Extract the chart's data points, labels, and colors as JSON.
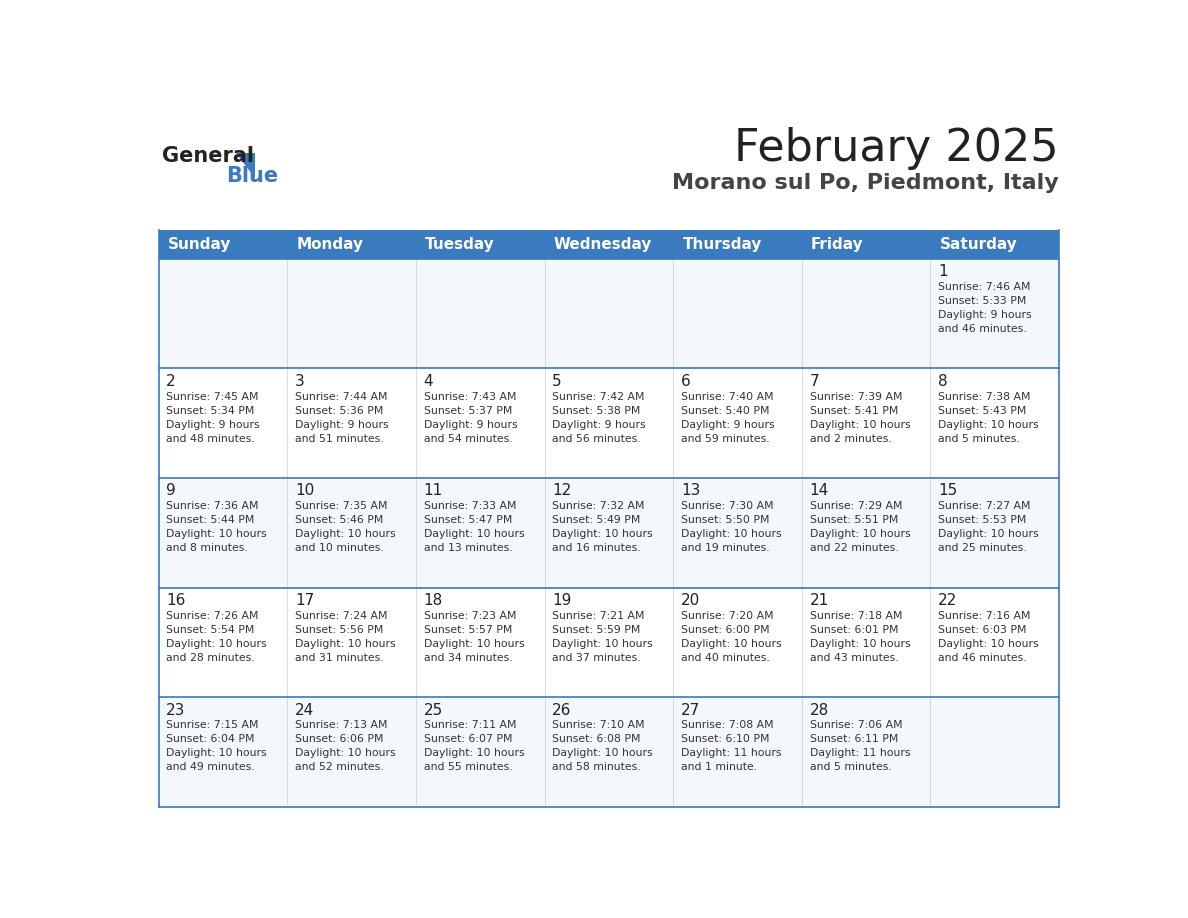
{
  "title": "February 2025",
  "subtitle": "Morano sul Po, Piedmont, Italy",
  "header_color": "#3a7abf",
  "header_text_color": "#ffffff",
  "border_color": "#3a7abf",
  "day_names": [
    "Sunday",
    "Monday",
    "Tuesday",
    "Wednesday",
    "Thursday",
    "Friday",
    "Saturday"
  ],
  "days": [
    {
      "day": 1,
      "col": 6,
      "row": 0,
      "sunrise": "7:46 AM",
      "sunset": "5:33 PM",
      "daylight": "9 hours and 46 minutes."
    },
    {
      "day": 2,
      "col": 0,
      "row": 1,
      "sunrise": "7:45 AM",
      "sunset": "5:34 PM",
      "daylight": "9 hours and 48 minutes."
    },
    {
      "day": 3,
      "col": 1,
      "row": 1,
      "sunrise": "7:44 AM",
      "sunset": "5:36 PM",
      "daylight": "9 hours and 51 minutes."
    },
    {
      "day": 4,
      "col": 2,
      "row": 1,
      "sunrise": "7:43 AM",
      "sunset": "5:37 PM",
      "daylight": "9 hours and 54 minutes."
    },
    {
      "day": 5,
      "col": 3,
      "row": 1,
      "sunrise": "7:42 AM",
      "sunset": "5:38 PM",
      "daylight": "9 hours and 56 minutes."
    },
    {
      "day": 6,
      "col": 4,
      "row": 1,
      "sunrise": "7:40 AM",
      "sunset": "5:40 PM",
      "daylight": "9 hours and 59 minutes."
    },
    {
      "day": 7,
      "col": 5,
      "row": 1,
      "sunrise": "7:39 AM",
      "sunset": "5:41 PM",
      "daylight": "10 hours and 2 minutes."
    },
    {
      "day": 8,
      "col": 6,
      "row": 1,
      "sunrise": "7:38 AM",
      "sunset": "5:43 PM",
      "daylight": "10 hours and 5 minutes."
    },
    {
      "day": 9,
      "col": 0,
      "row": 2,
      "sunrise": "7:36 AM",
      "sunset": "5:44 PM",
      "daylight": "10 hours and 8 minutes."
    },
    {
      "day": 10,
      "col": 1,
      "row": 2,
      "sunrise": "7:35 AM",
      "sunset": "5:46 PM",
      "daylight": "10 hours and 10 minutes."
    },
    {
      "day": 11,
      "col": 2,
      "row": 2,
      "sunrise": "7:33 AM",
      "sunset": "5:47 PM",
      "daylight": "10 hours and 13 minutes."
    },
    {
      "day": 12,
      "col": 3,
      "row": 2,
      "sunrise": "7:32 AM",
      "sunset": "5:49 PM",
      "daylight": "10 hours and 16 minutes."
    },
    {
      "day": 13,
      "col": 4,
      "row": 2,
      "sunrise": "7:30 AM",
      "sunset": "5:50 PM",
      "daylight": "10 hours and 19 minutes."
    },
    {
      "day": 14,
      "col": 5,
      "row": 2,
      "sunrise": "7:29 AM",
      "sunset": "5:51 PM",
      "daylight": "10 hours and 22 minutes."
    },
    {
      "day": 15,
      "col": 6,
      "row": 2,
      "sunrise": "7:27 AM",
      "sunset": "5:53 PM",
      "daylight": "10 hours and 25 minutes."
    },
    {
      "day": 16,
      "col": 0,
      "row": 3,
      "sunrise": "7:26 AM",
      "sunset": "5:54 PM",
      "daylight": "10 hours and 28 minutes."
    },
    {
      "day": 17,
      "col": 1,
      "row": 3,
      "sunrise": "7:24 AM",
      "sunset": "5:56 PM",
      "daylight": "10 hours and 31 minutes."
    },
    {
      "day": 18,
      "col": 2,
      "row": 3,
      "sunrise": "7:23 AM",
      "sunset": "5:57 PM",
      "daylight": "10 hours and 34 minutes."
    },
    {
      "day": 19,
      "col": 3,
      "row": 3,
      "sunrise": "7:21 AM",
      "sunset": "5:59 PM",
      "daylight": "10 hours and 37 minutes."
    },
    {
      "day": 20,
      "col": 4,
      "row": 3,
      "sunrise": "7:20 AM",
      "sunset": "6:00 PM",
      "daylight": "10 hours and 40 minutes."
    },
    {
      "day": 21,
      "col": 5,
      "row": 3,
      "sunrise": "7:18 AM",
      "sunset": "6:01 PM",
      "daylight": "10 hours and 43 minutes."
    },
    {
      "day": 22,
      "col": 6,
      "row": 3,
      "sunrise": "7:16 AM",
      "sunset": "6:03 PM",
      "daylight": "10 hours and 46 minutes."
    },
    {
      "day": 23,
      "col": 0,
      "row": 4,
      "sunrise": "7:15 AM",
      "sunset": "6:04 PM",
      "daylight": "10 hours and 49 minutes."
    },
    {
      "day": 24,
      "col": 1,
      "row": 4,
      "sunrise": "7:13 AM",
      "sunset": "6:06 PM",
      "daylight": "10 hours and 52 minutes."
    },
    {
      "day": 25,
      "col": 2,
      "row": 4,
      "sunrise": "7:11 AM",
      "sunset": "6:07 PM",
      "daylight": "10 hours and 55 minutes."
    },
    {
      "day": 26,
      "col": 3,
      "row": 4,
      "sunrise": "7:10 AM",
      "sunset": "6:08 PM",
      "daylight": "10 hours and 58 minutes."
    },
    {
      "day": 27,
      "col": 4,
      "row": 4,
      "sunrise": "7:08 AM",
      "sunset": "6:10 PM",
      "daylight": "11 hours and 1 minute."
    },
    {
      "day": 28,
      "col": 5,
      "row": 4,
      "sunrise": "7:06 AM",
      "sunset": "6:11 PM",
      "daylight": "11 hours and 5 minutes."
    }
  ],
  "num_rows": 5,
  "logo_general_color": "#222222",
  "logo_blue_color": "#3a7abf"
}
